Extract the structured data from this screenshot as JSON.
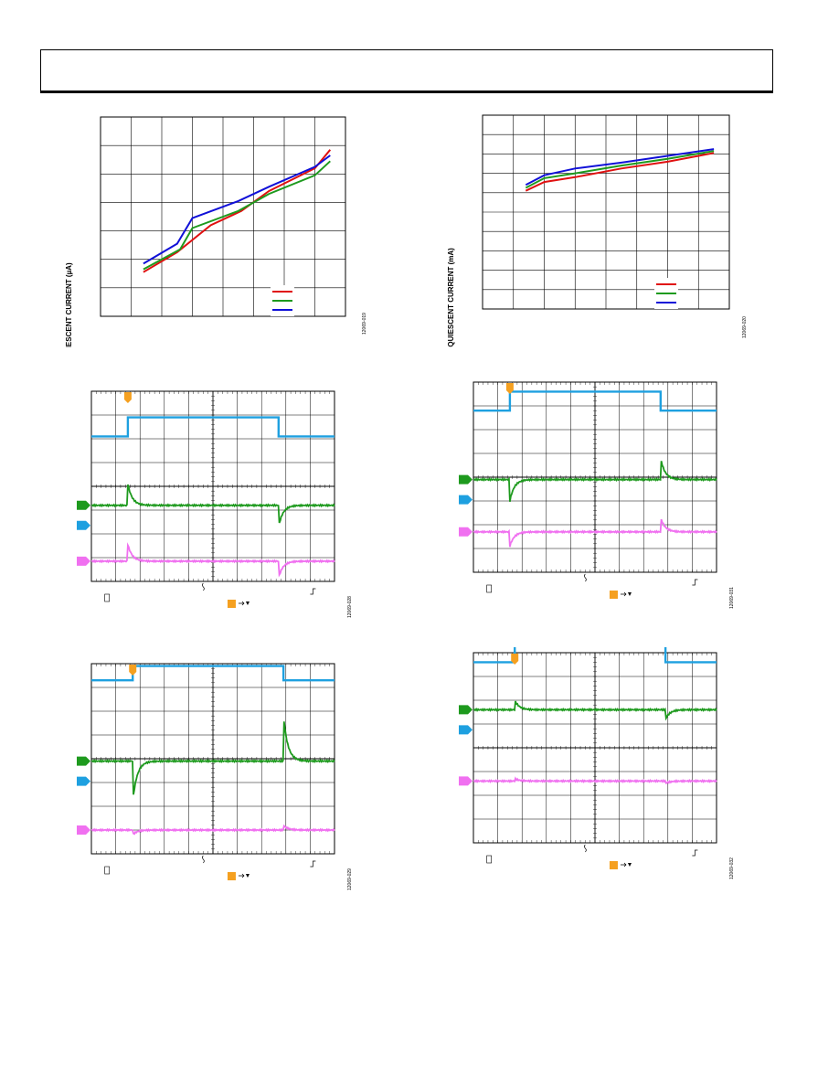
{
  "header": {
    "text": ""
  },
  "colors": {
    "red": "#e01010",
    "green": "#1e9a1e",
    "blue": "#1010d8",
    "scope_ch1": "#1ea0e0",
    "scope_ch2": "#1e9a1e",
    "scope_ch3": "#f070f0",
    "trigger": "#f5a020"
  },
  "fig_left_top": {
    "ylabel": "SHUTDOWN QUIESCENT CURRENT (µA)",
    "figure_id": "12069-019",
    "chart_data": {
      "type": "line",
      "title": "",
      "xlabel": "",
      "ylabel": "SHUTDOWN QUIESCENT CURRENT (µA)",
      "grid": true,
      "legend": "bottom-right",
      "note": "tick labels not legible in image; values in grid divisions",
      "series": [
        {
          "color": "red",
          "x": [
            1.4,
            2.5,
            3.6,
            4.6,
            5.5,
            7.0,
            7.5
          ],
          "y": [
            1.55,
            2.25,
            3.2,
            3.7,
            4.4,
            5.2,
            5.85
          ]
        },
        {
          "color": "green",
          "x": [
            1.4,
            2.6,
            3.0,
            4.5,
            5.5,
            7.0,
            7.5
          ],
          "y": [
            1.65,
            2.35,
            3.1,
            3.7,
            4.3,
            4.95,
            5.45
          ]
        },
        {
          "color": "blue",
          "x": [
            1.4,
            2.5,
            3.0,
            4.5,
            5.5,
            7.0,
            7.5
          ],
          "y": [
            1.85,
            2.55,
            3.45,
            4.05,
            4.55,
            5.25,
            5.65
          ]
        }
      ]
    }
  },
  "fig_right_top": {
    "ylabel": "OPERATING QUIESCENT CURRENT (mA)",
    "figure_id": "12069-020",
    "chart_data": {
      "type": "line",
      "title": "",
      "xlabel": "",
      "ylabel": "OPERATING QUIESCENT CURRENT (mA)",
      "grid": true,
      "legend": "bottom-right",
      "note": "tick labels not legible in image; values in grid divisions",
      "series": [
        {
          "color": "red",
          "x": [
            1.4,
            2.0,
            3.0,
            4.5,
            6.0,
            7.5
          ],
          "y": [
            6.1,
            6.55,
            6.8,
            7.25,
            7.6,
            8.05
          ]
        },
        {
          "color": "green",
          "x": [
            1.4,
            2.0,
            3.0,
            4.5,
            6.0,
            7.5
          ],
          "y": [
            6.25,
            6.75,
            7.0,
            7.4,
            7.75,
            8.15
          ]
        },
        {
          "color": "blue",
          "x": [
            1.4,
            2.0,
            3.0,
            4.5,
            6.0,
            7.5
          ],
          "y": [
            6.4,
            6.9,
            7.25,
            7.55,
            7.9,
            8.25
          ]
        }
      ]
    }
  },
  "scopes": [
    {
      "figure_id": "12069-028",
      "chart_data": {
        "type": "line",
        "xlabel": "",
        "ylabel": "",
        "grid": true,
        "trigger_div": 1.5,
        "step_up_div": 1.5,
        "step_down_div": 7.7,
        "ch1_levels_div": [
          6.1,
          6.9
        ],
        "ch2_level_div": 3.2,
        "ch3_level_div": 0.85,
        "ch2_spikes_div": [
          0.9,
          -0.9
        ],
        "ch3_spikes_div": [
          0.7,
          -0.7
        ]
      }
    },
    {
      "figure_id": "12069-031",
      "chart_data": {
        "type": "line",
        "xlabel": "",
        "ylabel": "",
        "grid": true,
        "trigger_div": 1.5,
        "step_up_div": 1.5,
        "step_down_div": 7.7,
        "ch1_levels_div": [
          6.8,
          7.6
        ],
        "ch2_level_div": 3.9,
        "ch3_level_div": 1.7,
        "ch2_spikes_div": [
          -0.9,
          0.9
        ],
        "ch3_spikes_div": [
          -0.6,
          0.6
        ]
      }
    },
    {
      "figure_id": "12069-029",
      "chart_data": {
        "type": "line",
        "xlabel": "",
        "ylabel": "",
        "grid": true,
        "trigger_div": 1.7,
        "step_up_div": 1.7,
        "step_down_div": 7.9,
        "ch1_levels_div": [
          7.3,
          7.9
        ],
        "ch2_level_div": 3.9,
        "ch3_level_div": 1.0,
        "ch2_spikes_div": [
          -1.7,
          1.9
        ],
        "ch3_spikes_div": [
          -0.2,
          0.2
        ]
      }
    },
    {
      "figure_id": "12069-032",
      "chart_data": {
        "type": "line",
        "xlabel": "",
        "ylabel": "",
        "grid": true,
        "trigger_div": 1.7,
        "step_up_div": 1.7,
        "step_down_div": 7.9,
        "ch1_levels_div": [
          7.6,
          8.4
        ],
        "ch2_level_div": 5.6,
        "ch3_level_div": 2.6,
        "ch2_spikes_div": [
          0.4,
          -0.4
        ],
        "ch3_spikes_div": [
          0.1,
          -0.1
        ]
      }
    }
  ]
}
